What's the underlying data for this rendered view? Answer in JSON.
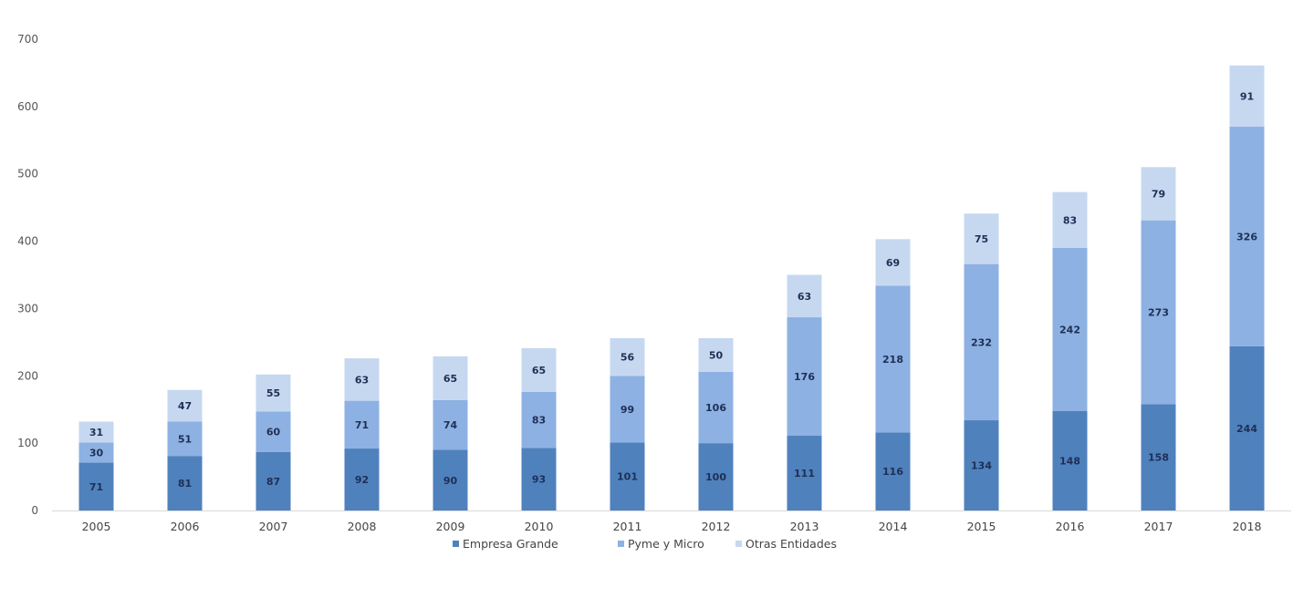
{
  "chart_data": {
    "type": "bar",
    "stacked": true,
    "categories": [
      "2005",
      "2006",
      "2007",
      "2008",
      "2009",
      "2010",
      "2011",
      "2012",
      "2013",
      "2014",
      "2015",
      "2016",
      "2017",
      "2018"
    ],
    "series": [
      {
        "name": "Empresa Grande",
        "color": "#4f81bd",
        "values": [
          71,
          81,
          87,
          92,
          90,
          93,
          101,
          100,
          111,
          116,
          134,
          148,
          158,
          244
        ]
      },
      {
        "name": "Pyme y Micro",
        "color": "#8db1e2",
        "values": [
          30,
          51,
          60,
          71,
          74,
          83,
          99,
          106,
          176,
          218,
          232,
          242,
          273,
          326
        ]
      },
      {
        "name": "Otras Entidades",
        "color": "#c6d8f0",
        "values": [
          31,
          47,
          55,
          63,
          65,
          65,
          56,
          50,
          63,
          69,
          75,
          83,
          79,
          91
        ]
      }
    ],
    "title": "",
    "xlabel": "",
    "ylabel": "",
    "ylim": [
      0,
      700
    ],
    "yticks": [
      0,
      100,
      200,
      300,
      400,
      500,
      600,
      700
    ],
    "grid": false,
    "legend_position": "bottom"
  }
}
